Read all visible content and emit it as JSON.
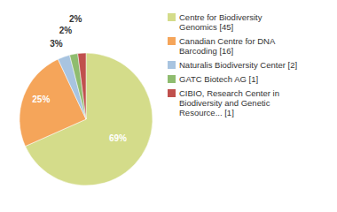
{
  "chart_data": {
    "type": "pie",
    "categories": [
      "Centre for Biodiversity\nGenomics [45]",
      "Canadian Centre for DNA\nBarcoding [16]",
      "Naturalis Biodiversity Center [2]",
      "GATC Biotech AG [1]",
      "CIBIO, Research Center in\nBiodiversity and Genetic\nResource... [1]"
    ],
    "values": [
      69,
      25,
      3,
      2,
      2
    ],
    "value_labels": [
      "69%",
      "25%",
      "3%",
      "2%",
      "2%"
    ],
    "colors": [
      "#d4dc8a",
      "#f5a55a",
      "#a8c4e0",
      "#8fbc6f",
      "#c0504d"
    ],
    "data_labels": true,
    "legend": "right"
  }
}
